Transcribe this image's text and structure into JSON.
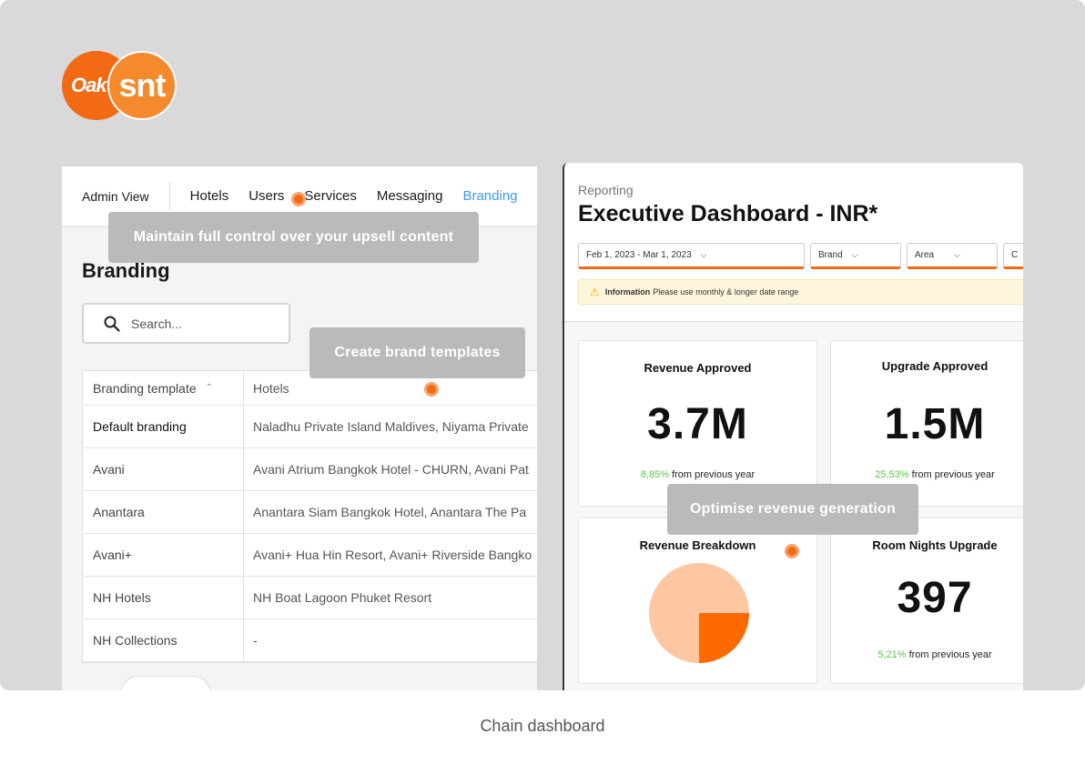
{
  "logo": {
    "left": "Oak",
    "right": "snt"
  },
  "admin": {
    "view_label": "Admin View",
    "nav": [
      "Hotels",
      "Users",
      "Services",
      "Messaging",
      "Branding"
    ],
    "active_nav": "Branding",
    "page_title": "Branding",
    "search_placeholder": "Search...",
    "table": {
      "headers": [
        "Branding template",
        "Hotels"
      ],
      "rows": [
        [
          "Default branding",
          "Naladhu Private Island Maldives, Niyama Private"
        ],
        [
          "Avani",
          "Avani Atrium Bangkok Hotel - CHURN, Avani Pat"
        ],
        [
          "Anantara",
          "Anantara Siam Bangkok Hotel, Anantara The Pa"
        ],
        [
          "Avani+",
          "Avani+ Hua Hin Resort, Avani+ Riverside Bangko"
        ],
        [
          "NH Hotels",
          "NH Boat Lagoon Phuket Resort"
        ],
        [
          "NH Collections",
          "-"
        ]
      ]
    }
  },
  "dashboard": {
    "breadcrumb": "Reporting",
    "title": "Executive Dashboard - INR*",
    "filters": [
      "Feb 1, 2023 - Mar 1, 2023",
      "Brand",
      "Area",
      "C"
    ],
    "info_label": "Information",
    "info_text": "Please use monthly & longer date range",
    "cards": {
      "revenue_approved": {
        "title": "Revenue Approved",
        "value": "3.7M",
        "pct": "8,85%",
        "suffix": "from previous year"
      },
      "upgrade_approved": {
        "title": "Upgrade Approved",
        "value": "1.5M",
        "pct": "25,53%",
        "suffix": "from previous year"
      },
      "revenue_breakdown": {
        "title": "Revenue Breakdown"
      },
      "room_nights": {
        "title": "Room Nights Upgrade",
        "value": "397",
        "pct": "5,21%",
        "suffix": "from previous year"
      }
    },
    "pie_colors": [
      "#fcc7a1",
      "#ff6a00"
    ]
  },
  "chart_data": {
    "type": "pie",
    "title": "Revenue Breakdown",
    "values": [
      75,
      25
    ],
    "categories": [
      "",
      ""
    ]
  },
  "tooltips": {
    "control": "Maintain full control over your upsell content",
    "templates": "Create brand templates",
    "revenue": "Optimise revenue generation"
  },
  "caption": "Chain dashboard"
}
